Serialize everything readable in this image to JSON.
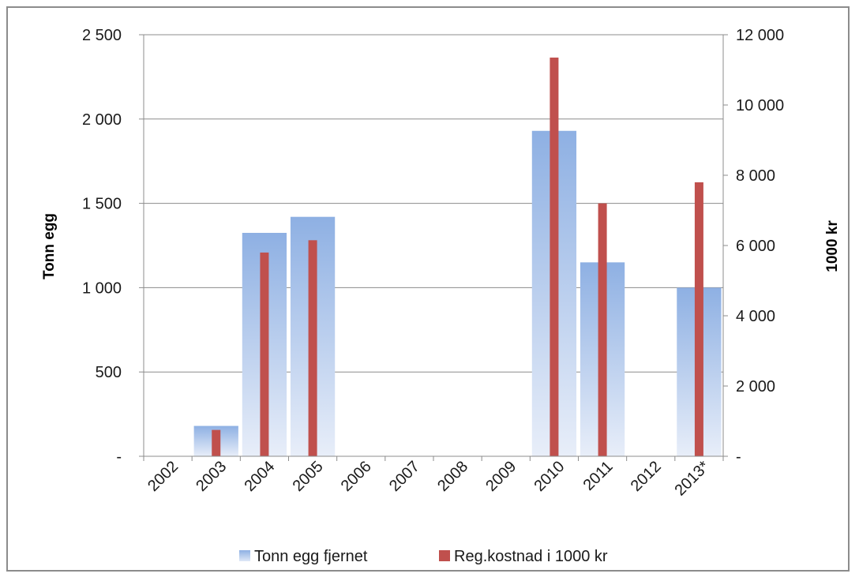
{
  "chart_data": {
    "type": "bar",
    "categories": [
      "2002",
      "2003",
      "2004",
      "2005",
      "2006",
      "2007",
      "2008",
      "2009",
      "2010",
      "2011",
      "2012",
      "2013*"
    ],
    "series": [
      {
        "name": "Tonn egg fjernet",
        "axis": "left",
        "color": "#8eb0e3",
        "values": [
          0,
          180,
          1325,
          1420,
          0,
          0,
          0,
          0,
          1930,
          1150,
          0,
          1000
        ]
      },
      {
        "name": "Reg.kostnad i 1000 kr",
        "axis": "right",
        "color": "#c0504d",
        "values": [
          0,
          750,
          5800,
          6150,
          0,
          0,
          0,
          0,
          11350,
          7200,
          0,
          7800
        ]
      }
    ],
    "y_left": {
      "label": "Tonn egg",
      "ylim": [
        0,
        2500
      ],
      "ticks": [
        0,
        500,
        1000,
        1500,
        2000,
        2500
      ],
      "tick_labels": [
        "-",
        "500",
        "1 000",
        "1 500",
        "2 000",
        "2 500"
      ]
    },
    "y_right": {
      "label": "1000 kr",
      "ylim": [
        0,
        12000
      ],
      "ticks": [
        0,
        2000,
        4000,
        6000,
        8000,
        10000,
        12000
      ],
      "tick_labels": [
        "-",
        "2 000",
        "4 000",
        "6 000",
        "8 000",
        "10 000",
        "12 000"
      ]
    },
    "grid": true,
    "legend": "bottom"
  }
}
